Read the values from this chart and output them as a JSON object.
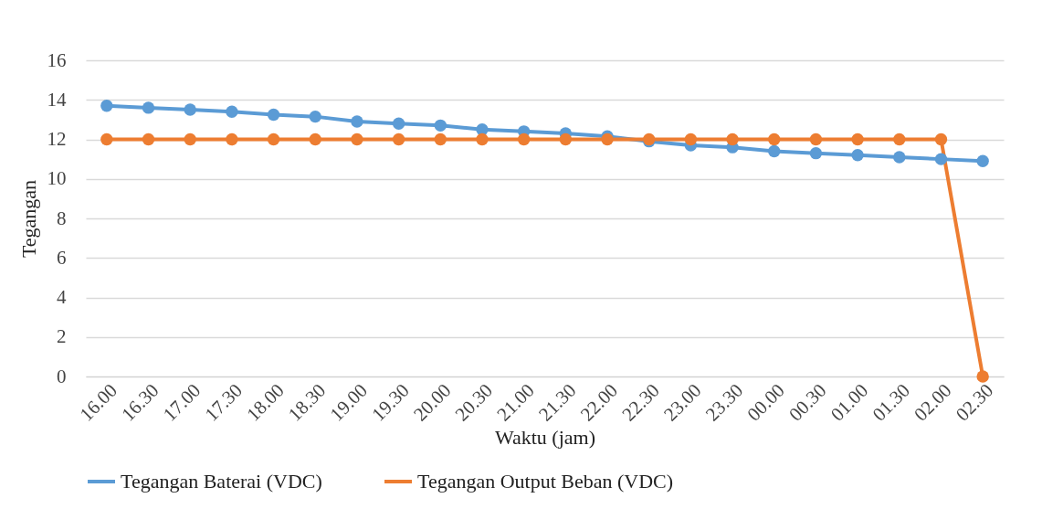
{
  "chart_data": {
    "type": "line",
    "xlabel": "Waktu (jam)",
    "ylabel": "Tegangan",
    "categories": [
      "16.00",
      "16.30",
      "17.00",
      "17.30",
      "18.00",
      "18.30",
      "19.00",
      "19.30",
      "20.00",
      "20.30",
      "21.00",
      "21.30",
      "22.00",
      "22.30",
      "23.00",
      "23.30",
      "00.00",
      "00.30",
      "01.00",
      "01.30",
      "02.00",
      "02.30"
    ],
    "series": [
      {
        "name": "Tegangan Baterai (VDC)",
        "color": "#5b9bd5",
        "values": [
          13.7,
          13.6,
          13.5,
          13.4,
          13.25,
          13.15,
          12.9,
          12.8,
          12.7,
          12.5,
          12.4,
          12.3,
          12.15,
          11.9,
          11.7,
          11.6,
          11.4,
          11.3,
          11.2,
          11.1,
          11.0,
          10.9
        ]
      },
      {
        "name": "Tegangan Output Beban (VDC)",
        "color": "#ed7d31",
        "values": [
          12,
          12,
          12,
          12,
          12,
          12,
          12,
          12,
          12,
          12,
          12,
          12,
          12,
          12,
          12,
          12,
          12,
          12,
          12,
          12,
          12,
          0
        ]
      }
    ],
    "ylim": [
      0,
      16
    ],
    "yticks": [
      0,
      2,
      4,
      6,
      8,
      10,
      12,
      14,
      16
    ],
    "grid": "y",
    "legend": "bottom",
    "marker": "circle",
    "line_style": "solid"
  }
}
